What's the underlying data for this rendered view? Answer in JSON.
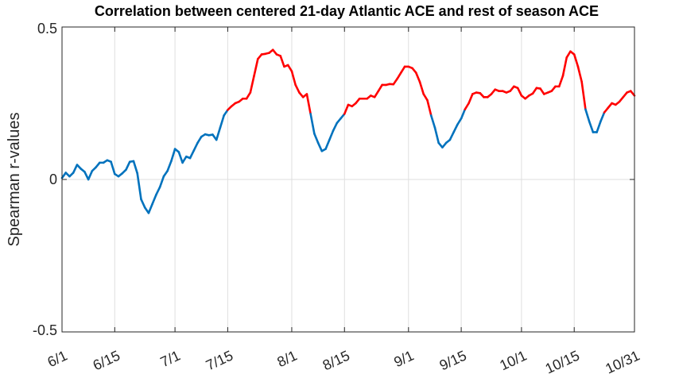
{
  "chart_data": {
    "type": "line",
    "title": "Correlation between centered 21-day Atlantic ACE and rest of season ACE",
    "xlabel": "",
    "ylabel": "Spearman r-values",
    "x_tick_labels": [
      "6/1",
      "6/15",
      "7/1",
      "7/15",
      "8/1",
      "8/15",
      "9/1",
      "9/15",
      "10/1",
      "10/15",
      "10/31"
    ],
    "x_tick_days": [
      0,
      14,
      30,
      44,
      61,
      75,
      92,
      106,
      122,
      136,
      152
    ],
    "y_ticks": [
      -0.5,
      0,
      0.5
    ],
    "y_tick_labels": [
      "-0.5",
      "0",
      "0.5"
    ],
    "xlim_days": [
      0,
      152
    ],
    "ylim": [
      -0.5,
      0.5
    ],
    "grid": true,
    "colors": {
      "below_threshold": "#0072BD",
      "above_threshold": "#FF0000"
    },
    "series": [
      {
        "x_days": [
          0,
          1,
          2,
          3,
          4,
          5,
          6,
          7,
          8,
          9,
          10,
          11,
          12,
          13,
          14,
          15,
          16,
          17,
          18,
          19,
          20,
          21,
          22,
          23,
          24,
          25,
          26,
          27,
          28,
          29,
          30,
          31,
          32,
          33,
          34,
          35,
          36,
          37,
          38,
          39,
          40,
          41,
          42,
          43,
          44,
          45,
          46,
          47,
          48,
          49,
          50,
          51,
          52,
          53,
          54,
          55,
          56,
          57,
          58,
          59,
          60,
          61,
          62,
          63,
          64,
          65,
          66,
          67,
          68,
          69,
          70,
          71,
          72,
          73,
          74,
          75,
          76,
          77,
          78,
          79,
          80,
          81,
          82,
          83,
          84,
          85,
          86,
          87,
          88,
          89,
          90,
          91,
          92,
          93,
          94,
          95,
          96,
          97,
          98,
          99,
          100,
          101,
          102,
          103,
          104,
          105,
          106,
          107,
          108,
          109,
          110,
          111,
          112,
          113,
          114,
          115,
          116,
          117,
          118,
          119,
          120,
          121,
          122,
          123,
          124,
          125,
          126,
          127,
          128,
          129,
          130,
          131,
          132,
          133,
          134,
          135,
          136,
          137,
          138,
          139,
          140,
          141,
          142,
          143,
          144,
          145,
          146,
          147,
          148,
          149,
          150,
          151,
          152
        ],
        "values": [
          0.005,
          0.022,
          0.01,
          0.022,
          0.048,
          0.035,
          0.025,
          0.0,
          0.028,
          0.04,
          0.055,
          0.055,
          0.063,
          0.058,
          0.018,
          0.01,
          0.02,
          0.032,
          0.058,
          0.06,
          0.02,
          -0.065,
          -0.092,
          -0.11,
          -0.08,
          -0.05,
          -0.025,
          0.01,
          0.028,
          0.06,
          0.1,
          0.09,
          0.055,
          0.075,
          0.07,
          0.095,
          0.12,
          0.14,
          0.148,
          0.145,
          0.147,
          0.13,
          0.17,
          0.21,
          0.228,
          0.24,
          0.25,
          0.255,
          0.265,
          0.265,
          0.285,
          0.34,
          0.395,
          0.41,
          0.412,
          0.415,
          0.425,
          0.41,
          0.405,
          0.37,
          0.375,
          0.355,
          0.31,
          0.285,
          0.27,
          0.28,
          0.215,
          0.15,
          0.12,
          0.093,
          0.1,
          0.13,
          0.16,
          0.185,
          0.2,
          0.215,
          0.245,
          0.24,
          0.25,
          0.265,
          0.265,
          0.265,
          0.275,
          0.27,
          0.29,
          0.31,
          0.31,
          0.313,
          0.312,
          0.33,
          0.35,
          0.37,
          0.37,
          0.365,
          0.35,
          0.32,
          0.28,
          0.26,
          0.21,
          0.17,
          0.12,
          0.105,
          0.12,
          0.13,
          0.155,
          0.18,
          0.2,
          0.23,
          0.25,
          0.28,
          0.285,
          0.283,
          0.27,
          0.27,
          0.28,
          0.295,
          0.29,
          0.29,
          0.285,
          0.29,
          0.305,
          0.3,
          0.275,
          0.265,
          0.275,
          0.282,
          0.3,
          0.298,
          0.28,
          0.285,
          0.29,
          0.305,
          0.305,
          0.34,
          0.4,
          0.42,
          0.41,
          0.37,
          0.32,
          0.23,
          0.19,
          0.155,
          0.155,
          0.19,
          0.22,
          0.235,
          0.25,
          0.245,
          0.255,
          0.27,
          0.285,
          0.29,
          0.275
        ]
      }
    ],
    "threshold_note": ""
  }
}
